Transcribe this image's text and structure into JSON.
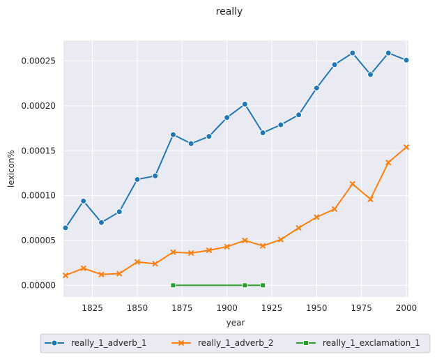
{
  "chart_data": {
    "type": "line",
    "title": "really",
    "xlabel": "year",
    "ylabel": "lexicon%",
    "xlim": [
      1810,
      2000
    ],
    "ylim": [
      -1.3e-05,
      0.000273
    ],
    "xticks": [
      1825,
      1850,
      1875,
      1900,
      1925,
      1950,
      1975,
      2000
    ],
    "yticks": [
      0.0,
      5e-05,
      0.0001,
      0.00015,
      0.0002,
      0.00025
    ],
    "ytick_labels": [
      "0.00000",
      "0.00005",
      "0.00010",
      "0.00015",
      "0.00020",
      "0.00025"
    ],
    "grid": true,
    "legend_position": "bottom-center",
    "series": [
      {
        "name": "really_1_adverb_1",
        "color": "#1f77b4",
        "marker": "circle",
        "x": [
          1810,
          1820,
          1830,
          1840,
          1850,
          1860,
          1870,
          1880,
          1890,
          1900,
          1910,
          1920,
          1930,
          1940,
          1950,
          1960,
          1970,
          1980,
          1990,
          2000
        ],
        "y": [
          6.4e-05,
          9.4e-05,
          7e-05,
          8.2e-05,
          0.000118,
          0.000122,
          0.000168,
          0.000158,
          0.000166,
          0.000187,
          0.000202,
          0.00017,
          0.000179,
          0.00019,
          0.00022,
          0.000246,
          0.000259,
          0.000235,
          0.000259,
          0.000251
        ]
      },
      {
        "name": "really_1_adverb_2",
        "color": "#ff7f0e",
        "marker": "x",
        "x": [
          1810,
          1820,
          1830,
          1840,
          1850,
          1860,
          1870,
          1880,
          1890,
          1900,
          1910,
          1920,
          1930,
          1940,
          1950,
          1960,
          1970,
          1980,
          1990,
          2000
        ],
        "y": [
          1.1e-05,
          1.9e-05,
          1.2e-05,
          1.3e-05,
          2.6e-05,
          2.4e-05,
          3.7e-05,
          3.6e-05,
          3.9e-05,
          4.3e-05,
          5e-05,
          4.4e-05,
          5.1e-05,
          6.4e-05,
          7.6e-05,
          8.5e-05,
          0.000113,
          9.6e-05,
          0.000137,
          0.000154
        ]
      },
      {
        "name": "really_1_exclamation_1",
        "color": "#2ca02c",
        "marker": "square",
        "x": [
          1870,
          1910,
          1920
        ],
        "y": [
          0.0,
          0.0,
          0.0
        ]
      }
    ]
  }
}
